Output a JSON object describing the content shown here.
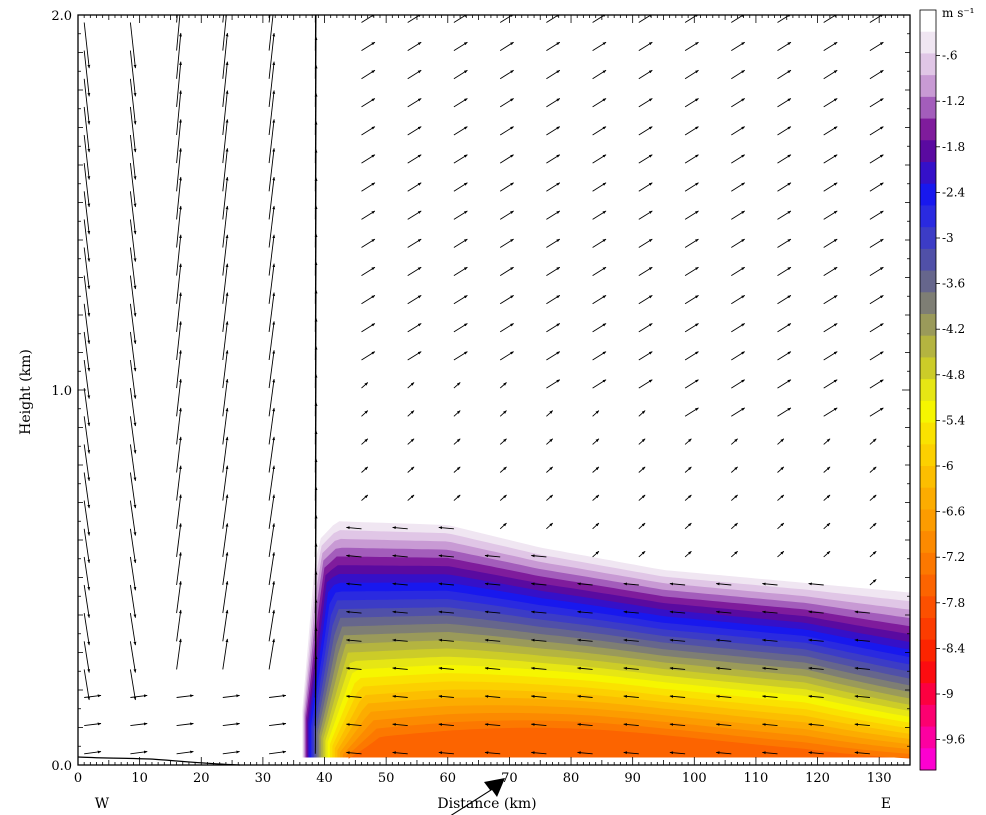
{
  "chart_data": {
    "type": "contour-vector",
    "xlabel": "Distance (km)",
    "ylabel": "Height (km)",
    "xlim": [
      0,
      135
    ],
    "ylim": [
      0.0,
      2.0
    ],
    "x_ticks": [
      0,
      10,
      20,
      30,
      40,
      50,
      60,
      70,
      80,
      90,
      100,
      110,
      120,
      130
    ],
    "y_ticks": [
      0.0,
      1.0,
      2.0
    ],
    "y_tick_labels": [
      "0.0",
      "1.0",
      "2.0"
    ],
    "direction_labels": {
      "left": "W",
      "right": "E"
    },
    "colorbar": {
      "unit": "m s⁻¹",
      "range": [
        -10.0,
        0.0
      ],
      "step": 0.3,
      "labels": [
        "-.6",
        "-1.2",
        "-1.8",
        "-2.4",
        "-3",
        "-3.6",
        "-4.2",
        "-4.8",
        "-5.4",
        "-6",
        "-6.6",
        "-7.2",
        "-7.8",
        "-8.4",
        "-9",
        "-9.6"
      ],
      "label_values": [
        -0.6,
        -1.2,
        -1.8,
        -2.4,
        -3.0,
        -3.6,
        -4.2,
        -4.8,
        -5.4,
        -6.0,
        -6.6,
        -7.2,
        -7.8,
        -8.4,
        -9.0,
        -9.6
      ],
      "colors": [
        "#ffffff",
        "#f0e6f2",
        "#e0c6e6",
        "#c89ad4",
        "#a35dbb",
        "#7f1c9c",
        "#5a0aa0",
        "#3510c8",
        "#1818ee",
        "#2a2ae0",
        "#3c3cc6",
        "#5050a8",
        "#66668c",
        "#7e7e74",
        "#9a9a5a",
        "#b4b440",
        "#cccc28",
        "#e6e614",
        "#f6f600",
        "#fae200",
        "#fcd000",
        "#fcbe00",
        "#fcac00",
        "#fc9c00",
        "#fc8a00",
        "#fc7800",
        "#fc6400",
        "#fc5000",
        "#fc3c00",
        "#fc2400",
        "#fc0c10",
        "#fc0040",
        "#fc0070",
        "#fc00a0",
        "#fc00d0"
      ]
    },
    "current_front": {
      "description_values": "leading edge near x = 36 km, head height about 0.65 km, decreasing to about 0.45 km at x = 135 km",
      "front_x_km": 36,
      "top_height_km": [
        [
          38,
          0.58
        ],
        [
          42,
          0.65
        ],
        [
          60,
          0.64
        ],
        [
          75,
          0.58
        ],
        [
          95,
          0.52
        ],
        [
          115,
          0.49
        ],
        [
          135,
          0.46
        ]
      ]
    },
    "vector_field": {
      "x_positions_km": [
        1,
        8.5,
        16,
        23.5,
        31,
        38.5,
        46,
        53.5,
        61,
        68.5,
        76,
        83.5,
        91,
        98.5,
        106,
        113.5,
        121,
        128.5
      ],
      "y_spacing_km": 0.075
    }
  },
  "annotation": {
    "arrow_icon": "black-pointer-arrow"
  }
}
